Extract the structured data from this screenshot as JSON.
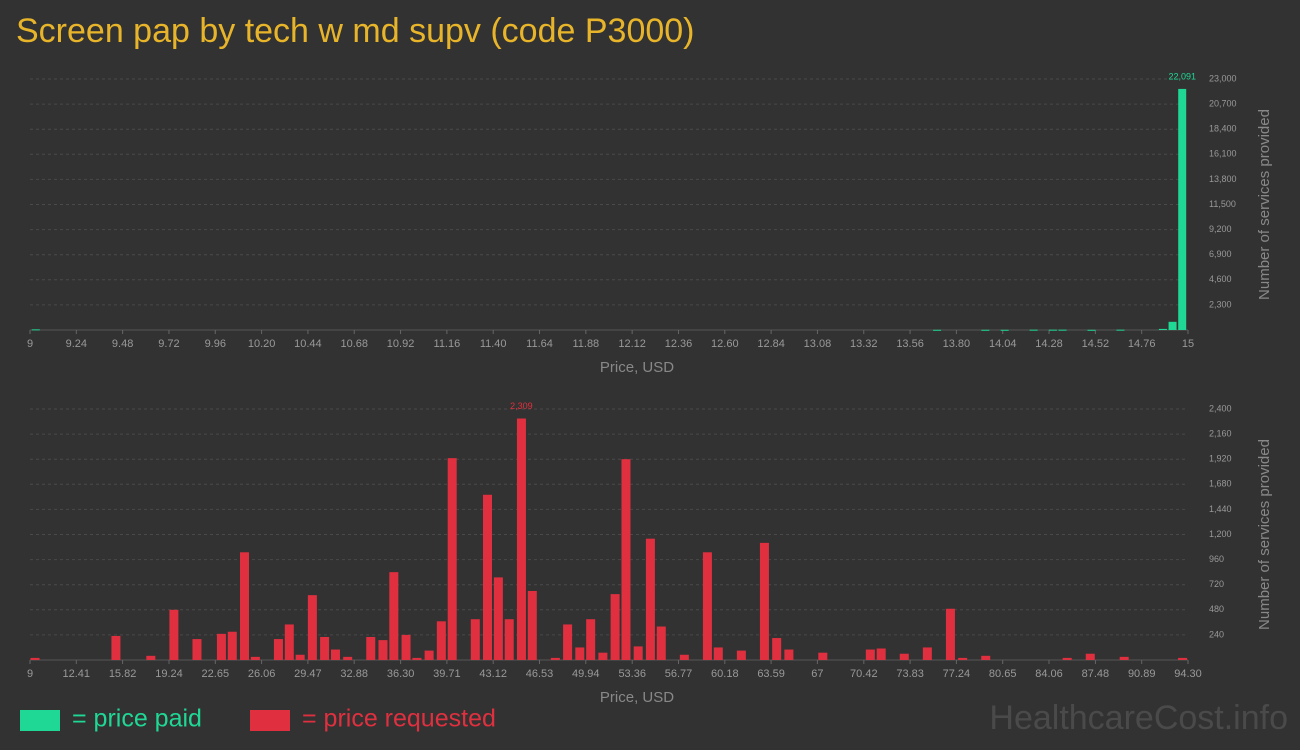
{
  "title": "Screen pap by tech w md supv (code P3000)",
  "watermark": "HealthcareCost.info",
  "legend": [
    {
      "label": "= price paid",
      "color": "#1fd895"
    },
    {
      "label": "= price requested",
      "color": "#e0303f"
    }
  ],
  "chart_data": [
    {
      "type": "bar",
      "color": "#1fd895",
      "xlabel": "Price, USD",
      "ylabel": "Number of services provided",
      "x": [
        9.03,
        13.7,
        13.95,
        14.05,
        14.2,
        14.3,
        14.35,
        14.5,
        14.65,
        14.87,
        14.92,
        14.97
      ],
      "values": [
        60,
        20,
        20,
        20,
        30,
        30,
        30,
        20,
        30,
        100,
        750,
        22091
      ],
      "value_labels": [
        null,
        null,
        null,
        null,
        null,
        null,
        null,
        null,
        null,
        null,
        null,
        "22,091"
      ],
      "xlim": [
        9,
        15
      ],
      "xticks": [
        9,
        9.24,
        9.48,
        9.72,
        9.96,
        {
          "value": 10.2,
          "label": "10.20"
        },
        10.44,
        10.68,
        10.92,
        11.16,
        {
          "value": 11.4,
          "label": "11.40"
        },
        11.64,
        11.88,
        12.12,
        12.36,
        {
          "value": 12.6,
          "label": "12.60"
        },
        12.84,
        13.08,
        13.32,
        13.56,
        {
          "value": 13.8,
          "label": "13.80"
        },
        14.04,
        14.28,
        14.52,
        14.76,
        15
      ],
      "ylim": [
        0,
        23000
      ],
      "yticks": [
        {
          "value": 2300,
          "label": "2,300"
        },
        {
          "value": 4600,
          "label": "4,600"
        },
        {
          "value": 6900,
          "label": "6,900"
        },
        {
          "value": 9200,
          "label": "9,200"
        },
        {
          "value": 11500,
          "label": "11,500"
        },
        {
          "value": 13800,
          "label": "13,800"
        },
        {
          "value": 16100,
          "label": "16,100"
        },
        {
          "value": 18400,
          "label": "18,400"
        },
        {
          "value": 20700,
          "label": "20,700"
        },
        {
          "value": 23000,
          "label": "23,000"
        }
      ],
      "grid": true
    },
    {
      "type": "bar",
      "color": "#e0303f",
      "xlabel": "Price, USD",
      "ylabel": "Number of services provided",
      "x": [
        9.37,
        15.33,
        17.9,
        19.6,
        21.3,
        23.1,
        23.9,
        24.8,
        25.6,
        27.3,
        28.1,
        28.9,
        29.8,
        30.7,
        31.5,
        32.4,
        34.1,
        35.0,
        35.8,
        36.7,
        37.5,
        38.4,
        39.3,
        40.1,
        41.8,
        42.7,
        43.5,
        44.3,
        45.2,
        46.0,
        47.7,
        48.6,
        49.5,
        50.3,
        51.2,
        52.1,
        52.9,
        53.8,
        54.7,
        55.5,
        57.2,
        58.9,
        59.7,
        61.4,
        63.1,
        64.0,
        64.9,
        67.4,
        70.9,
        71.7,
        73.4,
        75.1,
        76.8,
        77.7,
        79.4,
        85.4,
        87.1,
        89.6,
        93.9
      ],
      "values": [
        20,
        230,
        40,
        480,
        200,
        250,
        270,
        1030,
        30,
        200,
        340,
        50,
        620,
        220,
        100,
        30,
        220,
        190,
        840,
        240,
        20,
        90,
        370,
        1930,
        390,
        1580,
        790,
        390,
        2309,
        660,
        20,
        340,
        120,
        390,
        70,
        630,
        1920,
        130,
        1160,
        320,
        50,
        1030,
        120,
        90,
        1120,
        210,
        100,
        70,
        100,
        110,
        60,
        120,
        490,
        20,
        40,
        20,
        60,
        30,
        20
      ],
      "value_labels": [
        null,
        null,
        null,
        null,
        null,
        null,
        null,
        null,
        null,
        null,
        null,
        null,
        null,
        null,
        null,
        null,
        null,
        null,
        null,
        null,
        null,
        null,
        null,
        null,
        null,
        null,
        null,
        null,
        "2,309",
        null,
        null,
        null,
        null,
        null,
        null,
        null,
        null,
        null,
        null,
        null,
        null,
        null,
        null,
        null,
        null,
        null,
        null,
        null,
        null,
        null,
        null,
        null,
        null,
        null,
        null,
        null,
        null,
        null,
        null
      ],
      "xlim": [
        9,
        94.3
      ],
      "xticks": [
        9,
        12.41,
        15.82,
        19.24,
        22.65,
        26.06,
        29.47,
        32.88,
        {
          "value": 36.3,
          "label": "36.30"
        },
        39.71,
        43.12,
        46.53,
        49.94,
        53.36,
        56.77,
        60.18,
        63.59,
        67,
        70.42,
        73.83,
        77.24,
        80.65,
        84.06,
        87.48,
        90.89,
        {
          "value": 94.3,
          "label": "94.30"
        }
      ],
      "ylim": [
        0,
        2400
      ],
      "yticks": [
        240,
        480,
        720,
        960,
        {
          "value": 1200,
          "label": "1,200"
        },
        {
          "value": 1440,
          "label": "1,440"
        },
        {
          "value": 1680,
          "label": "1,680"
        },
        {
          "value": 1920,
          "label": "1,920"
        },
        {
          "value": 2160,
          "label": "2,160"
        },
        {
          "value": 2400,
          "label": "2,400"
        }
      ],
      "grid": true
    }
  ]
}
